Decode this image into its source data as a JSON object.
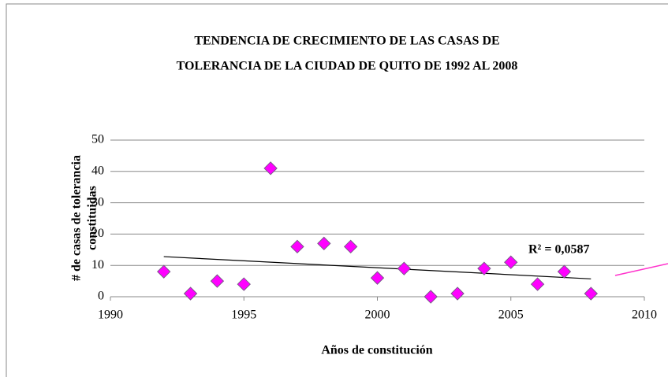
{
  "chart_data": {
    "type": "scatter",
    "title": [
      "TENDENCIA DE CRECIMIENTO DE LAS CASAS DE",
      "TOLERANCIA DE LA CIUDAD DE QUITO DE 1992 AL 2008"
    ],
    "xlabel": "Años de constitución",
    "ylabel": [
      "# de casas de tolerancia",
      "constituidas"
    ],
    "annotation": "R² = 0,0587",
    "x": [
      1992,
      1993,
      1994,
      1995,
      1996,
      1997,
      1998,
      1999,
      2000,
      2001,
      2002,
      2003,
      2004,
      2005,
      2006,
      2007,
      2008
    ],
    "values": [
      8,
      1,
      5,
      4,
      41,
      16,
      17,
      16,
      6,
      9,
      0,
      1,
      9,
      11,
      4,
      8,
      1
    ],
    "color": "#ff00ff",
    "trendline": {
      "x": [
        1992,
        2008
      ],
      "values": [
        12.8,
        5.7
      ],
      "color": "#000000"
    },
    "xlim": [
      1990,
      2010
    ],
    "xticks": [
      1990,
      1995,
      2000,
      2005,
      2010
    ],
    "ylim": [
      0,
      50
    ],
    "yticks": [
      0,
      10,
      20,
      30,
      40,
      50
    ],
    "grid": true
  }
}
